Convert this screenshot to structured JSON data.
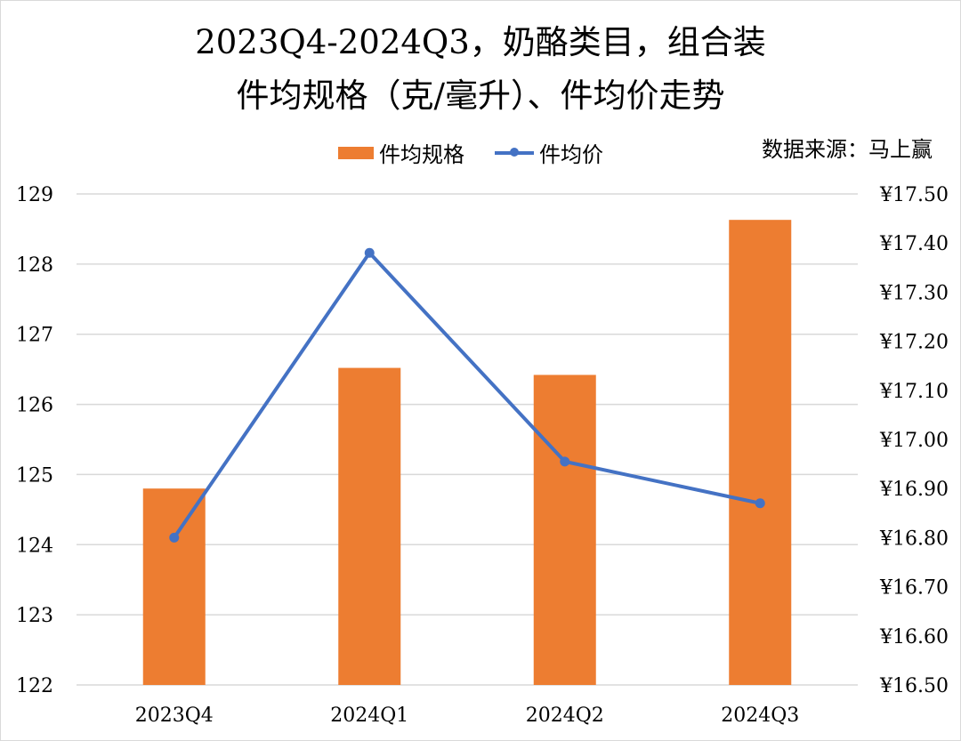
{
  "title_line1": "2023Q4-2024Q3，奶酪类目，组合装",
  "title_line2": "件均规格（克/毫升）、件均价走势",
  "source_text": "数据来源：马上赢",
  "colors": {
    "bar": "#ed7d31",
    "line": "#4472c4",
    "grid": "#d9d9d9"
  },
  "chart_data": {
    "type": "bar",
    "categories": [
      "2023Q4",
      "2024Q1",
      "2024Q2",
      "2024Q3"
    ],
    "series": [
      {
        "name": "件均规格",
        "type": "bar",
        "axis": "left",
        "values": [
          124.8,
          126.52,
          126.42,
          128.63
        ]
      },
      {
        "name": "件均价",
        "type": "line",
        "axis": "right",
        "values": [
          16.8,
          17.38,
          16.955,
          16.87
        ]
      }
    ],
    "y_left": {
      "min": 122,
      "max": 129,
      "ticks": [
        "122",
        "123",
        "124",
        "125",
        "126",
        "127",
        "128",
        "129"
      ]
    },
    "y_right": {
      "min": 16.5,
      "max": 17.5,
      "ticks": [
        "¥16.50",
        "¥16.60",
        "¥16.70",
        "¥16.80",
        "¥16.90",
        "¥17.00",
        "¥17.10",
        "¥17.20",
        "¥17.30",
        "¥17.40",
        "¥17.50"
      ]
    },
    "grid": true,
    "legend_position": "top"
  }
}
